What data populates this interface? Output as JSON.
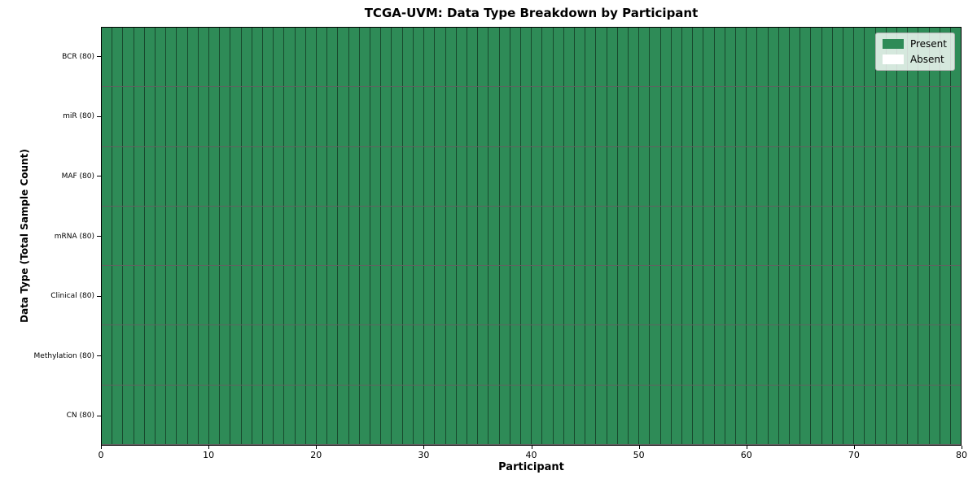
{
  "chart_data": {
    "type": "heatmap",
    "title": "TCGA-UVM: Data Type Breakdown by Participant",
    "xlabel": "Participant",
    "ylabel": "Data Type (Total Sample Count)",
    "xlim": [
      0,
      80
    ],
    "x_ticks": [
      0,
      10,
      20,
      30,
      40,
      50,
      60,
      70,
      80
    ],
    "participant_count": 80,
    "grid": "per-cell edges, full black frame",
    "legend_position": "upper right",
    "rows": [
      {
        "label": "BCR (80)",
        "total_samples": 80,
        "present_count": 80,
        "absent_count": 0
      },
      {
        "label": "miR (80)",
        "total_samples": 80,
        "present_count": 80,
        "absent_count": 0
      },
      {
        "label": "MAF (80)",
        "total_samples": 80,
        "present_count": 80,
        "absent_count": 0
      },
      {
        "label": "mRNA (80)",
        "total_samples": 80,
        "present_count": 80,
        "absent_count": 0
      },
      {
        "label": "Clinical (80)",
        "total_samples": 80,
        "present_count": 80,
        "absent_count": 0
      },
      {
        "label": "Methylation (80)",
        "total_samples": 80,
        "present_count": 80,
        "absent_count": 0
      },
      {
        "label": "CN (80)",
        "total_samples": 80,
        "present_count": 80,
        "absent_count": 0
      }
    ],
    "legend": [
      {
        "label": "Present",
        "color": "#2e8b57"
      },
      {
        "label": "Absent",
        "color": "#ffffff"
      }
    ]
  },
  "colors": {
    "present": "#2e8b57",
    "absent": "#ffffff",
    "figure_background": "#ffffff",
    "axis_line": "#000000",
    "legend_background": "rgba(255,255,255,0.8)",
    "legend_border": "#b3b3b3"
  }
}
